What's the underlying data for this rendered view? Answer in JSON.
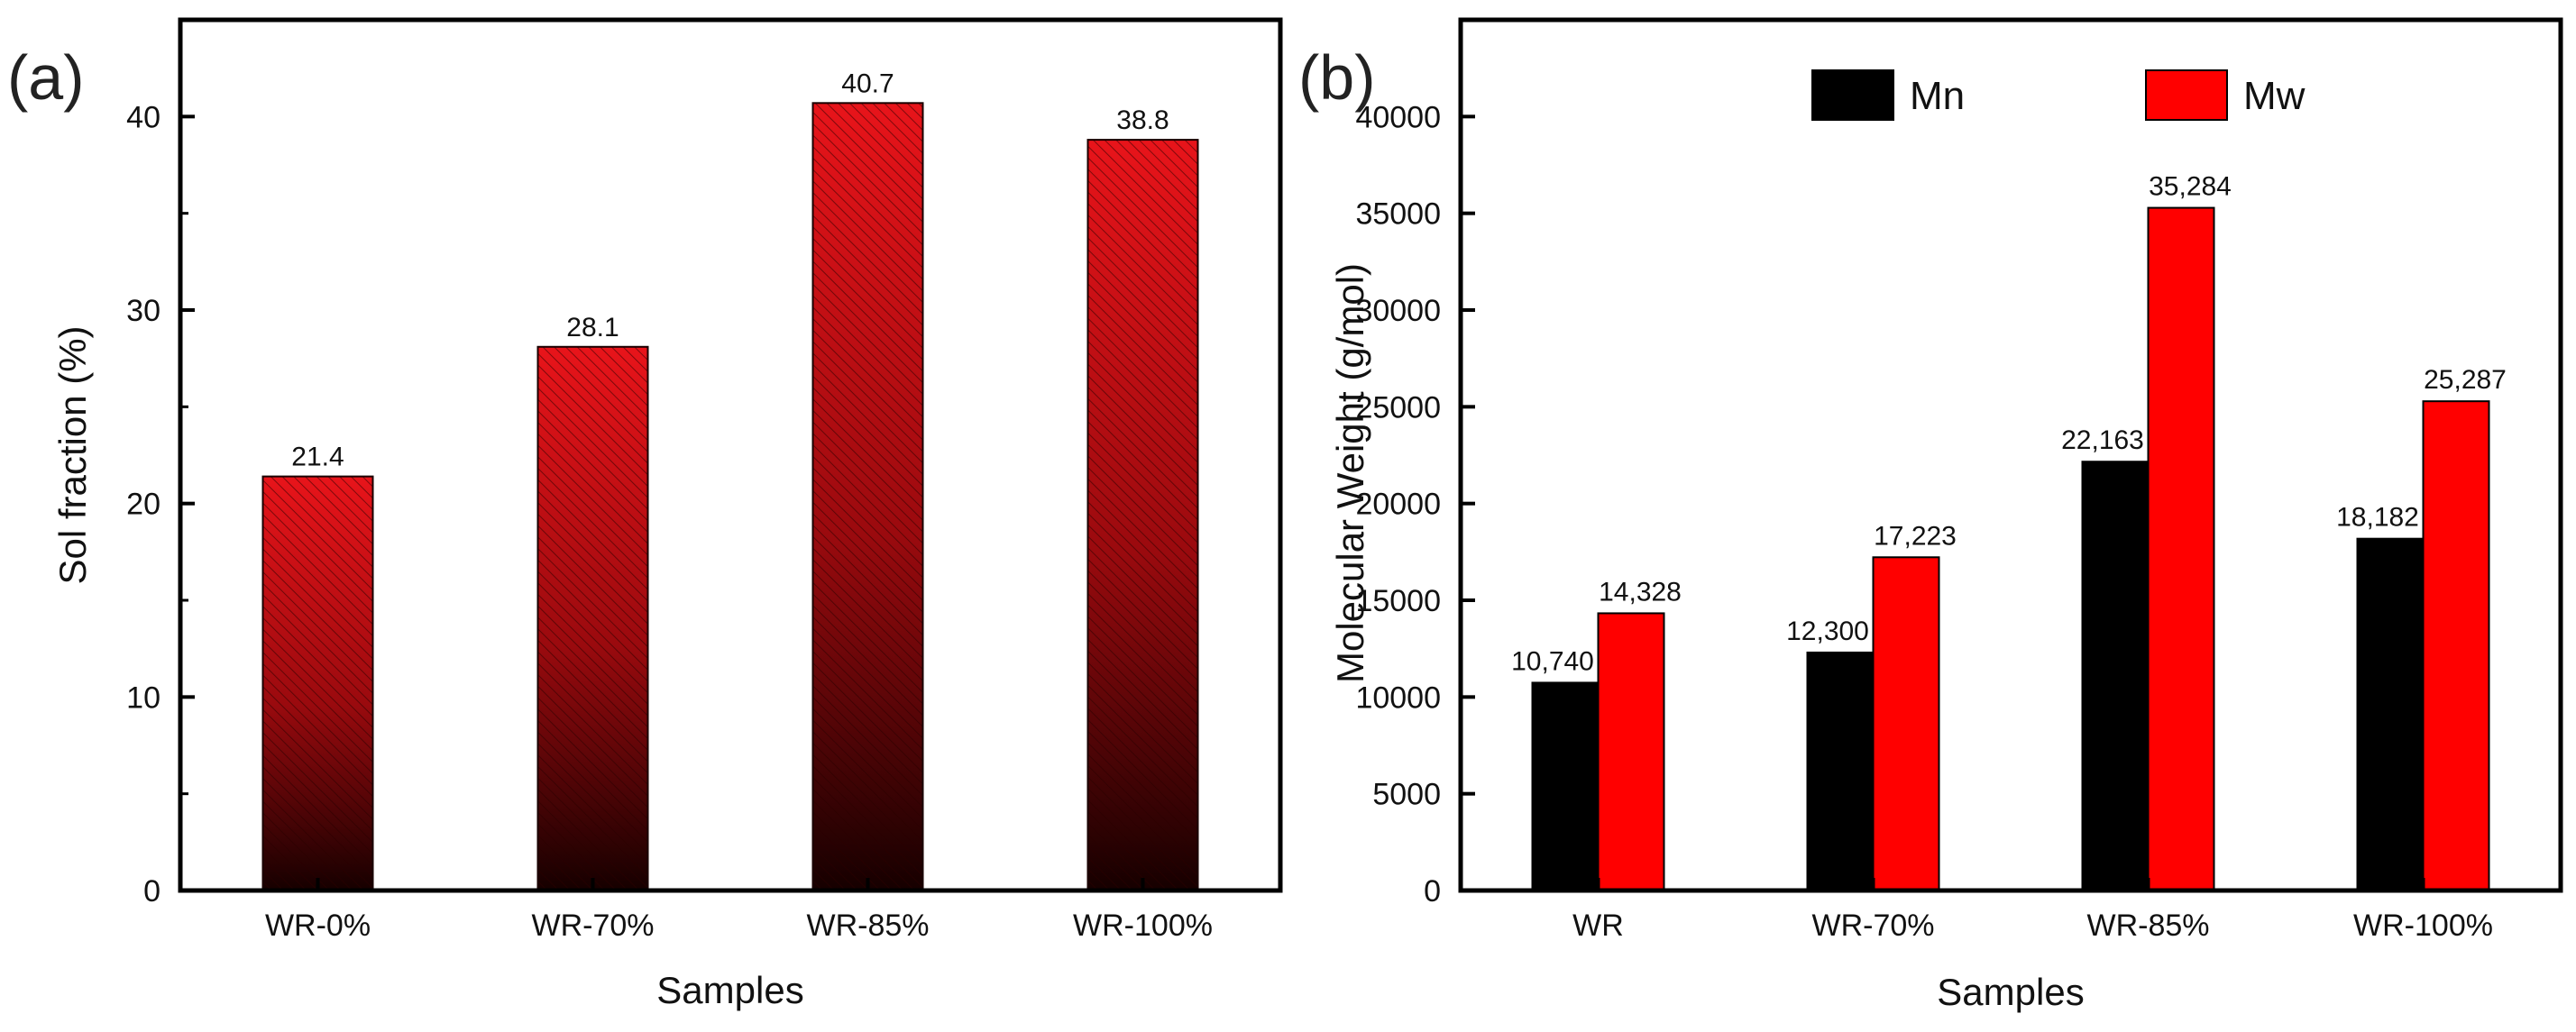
{
  "chart_data": [
    {
      "type": "bar",
      "panel_label": "(a)",
      "title": "",
      "xlabel": "Samples",
      "ylabel": "Sol fraction (%)",
      "categories": [
        "WR-0%",
        "WR-70%",
        "WR-85%",
        "WR-100%"
      ],
      "values": [
        21.4,
        28.1,
        40.7,
        38.8
      ],
      "value_labels": [
        "21.4",
        "28.1",
        "40.7",
        "38.8"
      ],
      "ylim": [
        0,
        45
      ],
      "yticks": [
        0,
        10,
        20,
        30,
        40
      ],
      "ytick_labels": [
        "0",
        "10",
        "20",
        "30",
        "40"
      ],
      "grid": false,
      "fill": "red-to-black gradient with diagonal hatching",
      "colors": {
        "top": "#e8141a",
        "bottom": "#1a0000",
        "hatch": "#3a0000"
      }
    },
    {
      "type": "bar",
      "panel_label": "(b)",
      "title": "",
      "xlabel": "Samples",
      "ylabel": "Molecular Weight (g/mol)",
      "categories": [
        "WR",
        "WR-70%",
        "WR-85%",
        "WR-100%"
      ],
      "series": [
        {
          "name": "Mn",
          "color": "#000000",
          "values": [
            10740,
            12300,
            22163,
            18182
          ],
          "value_labels": [
            "10,740",
            "12,300",
            "22,163",
            "18,182"
          ]
        },
        {
          "name": "Mw",
          "color": "#ff0000",
          "values": [
            14328,
            17223,
            35284,
            25287
          ],
          "value_labels": [
            "14,328",
            "17,223",
            "35,284",
            "25,287"
          ]
        }
      ],
      "ylim": [
        0,
        45000
      ],
      "yticks": [
        0,
        5000,
        10000,
        15000,
        20000,
        25000,
        30000,
        35000,
        40000
      ],
      "ytick_labels": [
        "0",
        "5000",
        "10000",
        "15000",
        "20000",
        "25000",
        "30000",
        "35000",
        "40000"
      ],
      "legend_position": "top",
      "grid": false
    }
  ]
}
